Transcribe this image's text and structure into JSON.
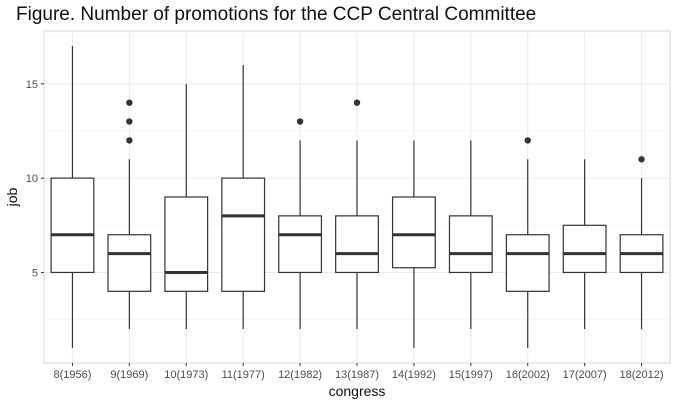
{
  "chart_data": {
    "type": "boxplot",
    "title": "Figure. Number of promotions for the CCP Central Committee",
    "xlabel": "congress",
    "ylabel": "job",
    "categories": [
      "8(1956)",
      "9(1969)",
      "10(1973)",
      "11(1977)",
      "12(1982)",
      "13(1987)",
      "14(1992)",
      "15(1997)",
      "16(2002)",
      "17(2007)",
      "18(2012)"
    ],
    "boxes": [
      {
        "category": "8(1956)",
        "min": 1,
        "q1": 5,
        "median": 7,
        "q3": 10,
        "max": 17,
        "outliers": []
      },
      {
        "category": "9(1969)",
        "min": 2,
        "q1": 4,
        "median": 6,
        "q3": 7,
        "max": 11,
        "outliers": [
          12,
          13,
          14
        ]
      },
      {
        "category": "10(1973)",
        "min": 2,
        "q1": 4,
        "median": 5,
        "q3": 9,
        "max": 15,
        "outliers": []
      },
      {
        "category": "11(1977)",
        "min": 2,
        "q1": 4,
        "median": 8,
        "q3": 10,
        "max": 16,
        "outliers": []
      },
      {
        "category": "12(1982)",
        "min": 2,
        "q1": 5,
        "median": 7,
        "q3": 8,
        "max": 12,
        "outliers": [
          13
        ]
      },
      {
        "category": "13(1987)",
        "min": 2,
        "q1": 5,
        "median": 6,
        "q3": 8,
        "max": 12,
        "outliers": [
          14
        ]
      },
      {
        "category": "14(1992)",
        "min": 1,
        "q1": 5.25,
        "median": 7,
        "q3": 9,
        "max": 12,
        "outliers": []
      },
      {
        "category": "15(1997)",
        "min": 2,
        "q1": 5,
        "median": 6,
        "q3": 8,
        "max": 12,
        "outliers": []
      },
      {
        "category": "16(2002)",
        "min": 1,
        "q1": 4,
        "median": 6,
        "q3": 7,
        "max": 11,
        "outliers": [
          12
        ]
      },
      {
        "category": "17(2007)",
        "min": 2,
        "q1": 5,
        "median": 6,
        "q3": 7.5,
        "max": 11,
        "outliers": []
      },
      {
        "category": "18(2012)",
        "min": 2,
        "q1": 5,
        "median": 6,
        "q3": 7,
        "max": 10,
        "outliers": [
          11
        ]
      }
    ],
    "yticks": [
      5,
      10,
      15
    ],
    "ylim": [
      0.2,
      17.8
    ],
    "grid": true,
    "colors": {
      "box_fill": "#ffffff",
      "box_stroke": "#333333",
      "outlier": "#333333",
      "grid_major": "#ebebeb",
      "grid_minor": "#f5f5f5",
      "panel_border": "#d9d9d9"
    }
  }
}
